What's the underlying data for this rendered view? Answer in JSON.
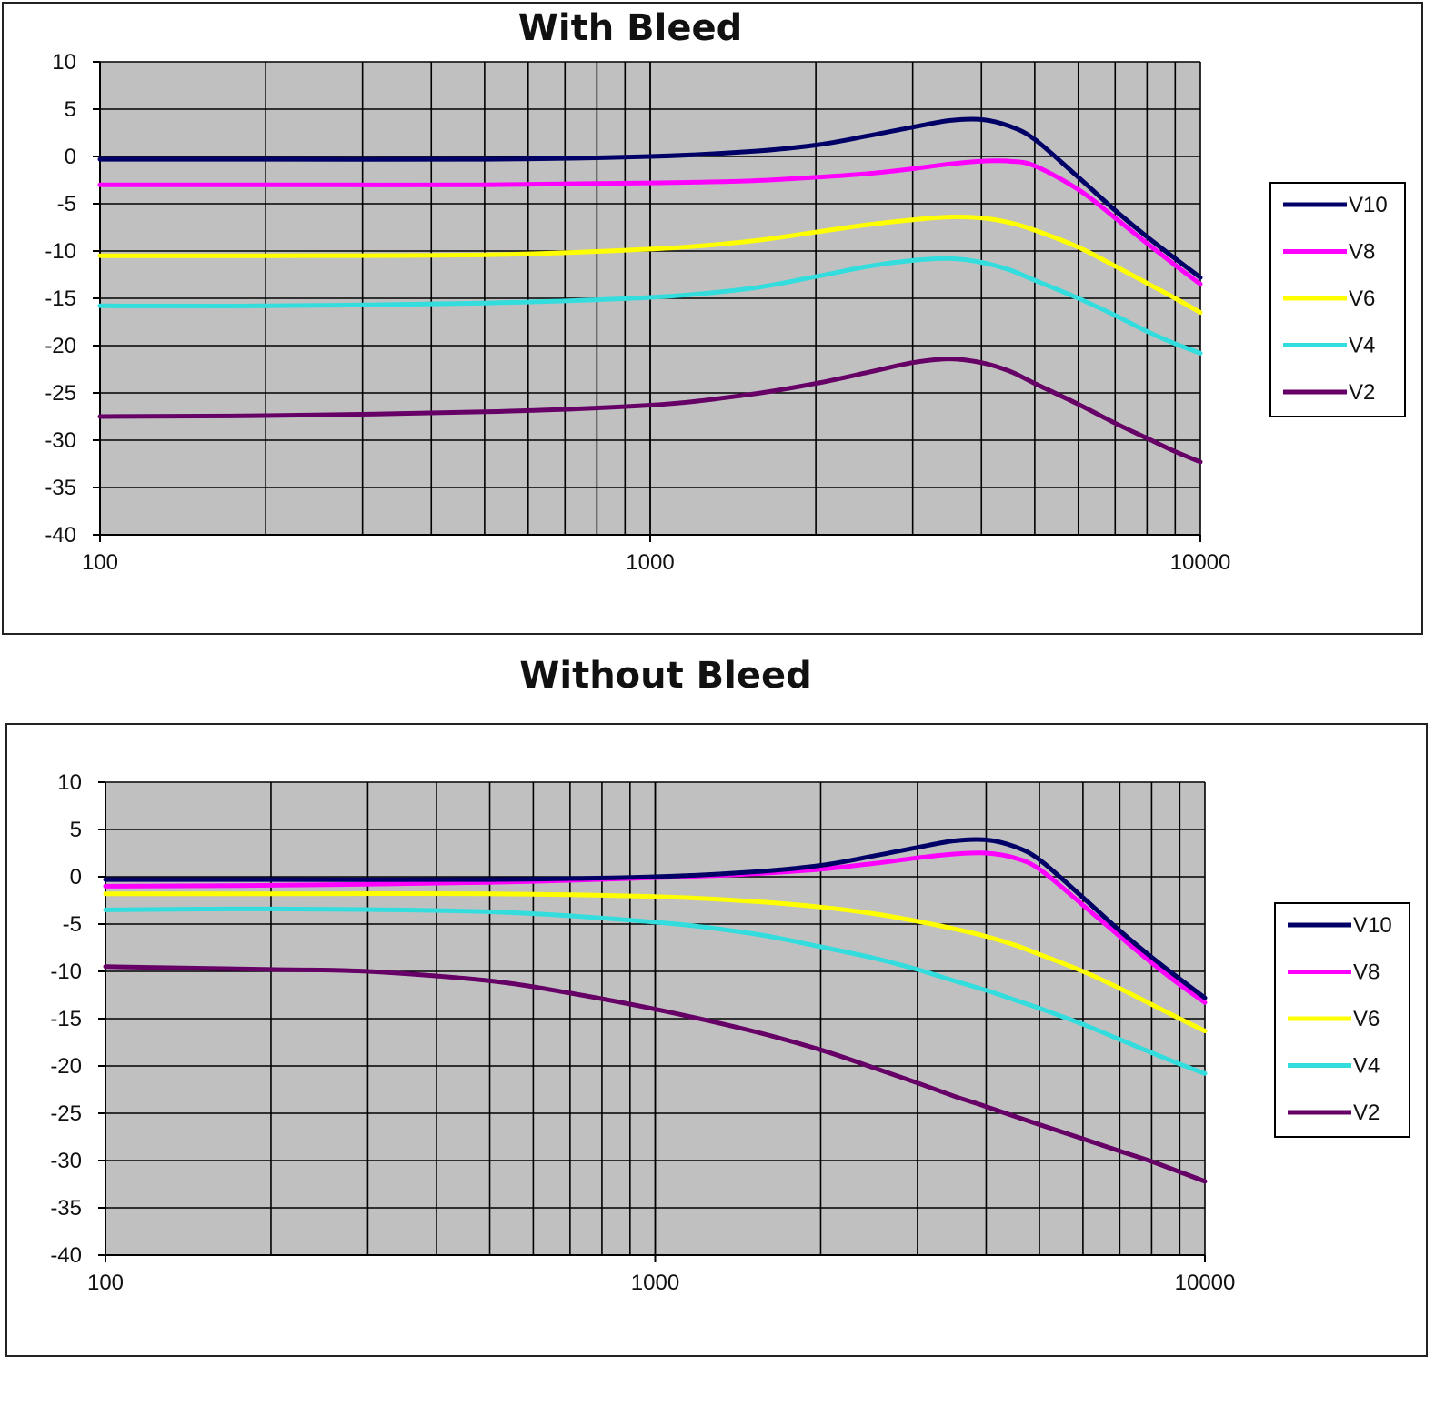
{
  "chart_data": [
    {
      "type": "line",
      "title": "With Bleed",
      "x_scale": "log",
      "xlim": [
        100,
        10000
      ],
      "ylim": [
        -40,
        10
      ],
      "x_tick_labels": [
        "100",
        "1000",
        "10000"
      ],
      "y_tick_labels": [
        "10",
        "5",
        "0",
        "-5",
        "-10",
        "-15",
        "-20",
        "-25",
        "-30",
        "-35",
        "-40"
      ],
      "grid": true,
      "plot_background": "#c0c0c0",
      "legend_position": "right",
      "series": [
        {
          "name": "V10",
          "color": "#000066",
          "x": [
            100,
            200,
            500,
            1000,
            1500,
            2000,
            2500,
            3000,
            3500,
            4000,
            4500,
            5000,
            6000,
            7000,
            8000,
            9000,
            10000
          ],
          "y": [
            -0.3,
            -0.3,
            -0.3,
            0,
            0.5,
            1.2,
            2.2,
            3.1,
            3.8,
            3.9,
            3.2,
            1.8,
            -2.2,
            -5.7,
            -8.5,
            -10.8,
            -12.8
          ]
        },
        {
          "name": "V8",
          "color": "#ff00ff",
          "x": [
            100,
            200,
            500,
            1000,
            1500,
            2000,
            2500,
            3000,
            3500,
            4000,
            4500,
            5000,
            6000,
            7000,
            8000,
            9000,
            10000
          ],
          "y": [
            -3,
            -3,
            -3,
            -2.8,
            -2.6,
            -2.2,
            -1.8,
            -1.3,
            -0.8,
            -0.5,
            -0.5,
            -1,
            -3.5,
            -6.5,
            -9.2,
            -11.5,
            -13.5
          ]
        },
        {
          "name": "V6",
          "color": "#ffff00",
          "x": [
            100,
            200,
            500,
            1000,
            1500,
            2000,
            2500,
            3000,
            3500,
            4000,
            4500,
            5000,
            6000,
            7000,
            8000,
            9000,
            10000
          ],
          "y": [
            -10.5,
            -10.5,
            -10.4,
            -9.8,
            -9,
            -8,
            -7.2,
            -6.7,
            -6.4,
            -6.5,
            -7,
            -7.8,
            -9.6,
            -11.6,
            -13.4,
            -15,
            -16.5
          ]
        },
        {
          "name": "V4",
          "color": "#33dddd",
          "x": [
            100,
            200,
            500,
            1000,
            1500,
            2000,
            2500,
            3000,
            3500,
            4000,
            4500,
            5000,
            6000,
            7000,
            8000,
            9000,
            10000
          ],
          "y": [
            -15.8,
            -15.8,
            -15.5,
            -14.9,
            -14,
            -12.7,
            -11.6,
            -11,
            -10.8,
            -11.2,
            -12,
            -13.1,
            -15,
            -16.8,
            -18.5,
            -19.8,
            -20.8
          ]
        },
        {
          "name": "V2",
          "color": "#660066",
          "x": [
            100,
            200,
            500,
            1000,
            1500,
            2000,
            2500,
            3000,
            3500,
            4000,
            4500,
            5000,
            6000,
            7000,
            8000,
            9000,
            10000
          ],
          "y": [
            -27.5,
            -27.4,
            -27,
            -26.3,
            -25.2,
            -24,
            -22.8,
            -21.8,
            -21.4,
            -21.8,
            -22.7,
            -24,
            -26.2,
            -28.2,
            -29.8,
            -31.2,
            -32.3
          ]
        }
      ]
    },
    {
      "type": "line",
      "title": "Without Bleed",
      "x_scale": "log",
      "xlim": [
        100,
        10000
      ],
      "ylim": [
        -40,
        10
      ],
      "x_tick_labels": [
        "100",
        "1000",
        "10000"
      ],
      "y_tick_labels": [
        "10",
        "5",
        "0",
        "-5",
        "-10",
        "-15",
        "-20",
        "-25",
        "-30",
        "-35",
        "-40"
      ],
      "grid": true,
      "plot_background": "#c0c0c0",
      "legend_position": "right",
      "series": [
        {
          "name": "V10",
          "color": "#000066",
          "x": [
            100,
            200,
            500,
            1000,
            1500,
            2000,
            2500,
            3000,
            3500,
            4000,
            4500,
            5000,
            6000,
            7000,
            8000,
            9000,
            10000
          ],
          "y": [
            -0.3,
            -0.3,
            -0.3,
            0,
            0.5,
            1.2,
            2.2,
            3.1,
            3.8,
            3.9,
            3.2,
            1.8,
            -2.2,
            -5.7,
            -8.5,
            -10.8,
            -12.8
          ]
        },
        {
          "name": "V8",
          "color": "#ff00ff",
          "x": [
            100,
            200,
            500,
            1000,
            1500,
            2000,
            2500,
            3000,
            3500,
            4000,
            4500,
            5000,
            6000,
            7000,
            8000,
            9000,
            10000
          ],
          "y": [
            -1,
            -0.9,
            -0.6,
            -0.1,
            0.3,
            0.8,
            1.4,
            2,
            2.4,
            2.5,
            2,
            0.8,
            -3,
            -6.3,
            -9.1,
            -11.4,
            -13.3
          ]
        },
        {
          "name": "V6",
          "color": "#ffff00",
          "x": [
            100,
            200,
            500,
            1000,
            1500,
            2000,
            2500,
            3000,
            3500,
            4000,
            4500,
            5000,
            6000,
            7000,
            8000,
            9000,
            10000
          ],
          "y": [
            -1.8,
            -1.8,
            -1.8,
            -2.1,
            -2.6,
            -3.2,
            -3.9,
            -4.7,
            -5.5,
            -6.3,
            -7.2,
            -8.2,
            -10,
            -11.8,
            -13.5,
            -15,
            -16.3
          ]
        },
        {
          "name": "V4",
          "color": "#33dddd",
          "x": [
            100,
            200,
            500,
            1000,
            1500,
            2000,
            2500,
            3000,
            3500,
            4000,
            4500,
            5000,
            6000,
            7000,
            8000,
            9000,
            10000
          ],
          "y": [
            -3.5,
            -3.4,
            -3.7,
            -4.8,
            -6,
            -7.4,
            -8.6,
            -9.8,
            -11,
            -12,
            -13,
            -13.9,
            -15.6,
            -17.2,
            -18.6,
            -19.8,
            -20.8
          ]
        },
        {
          "name": "V2",
          "color": "#660066",
          "x": [
            100,
            200,
            300,
            500,
            700,
            1000,
            1500,
            2000,
            2500,
            3000,
            3500,
            4000,
            5000,
            6000,
            7000,
            8000,
            9000,
            10000
          ],
          "y": [
            -9.5,
            -9.8,
            -10,
            -11,
            -12.3,
            -14,
            -16.3,
            -18.3,
            -20.2,
            -21.8,
            -23.2,
            -24.3,
            -26.2,
            -27.7,
            -29,
            -30.1,
            -31.2,
            -32.2
          ]
        }
      ]
    }
  ]
}
